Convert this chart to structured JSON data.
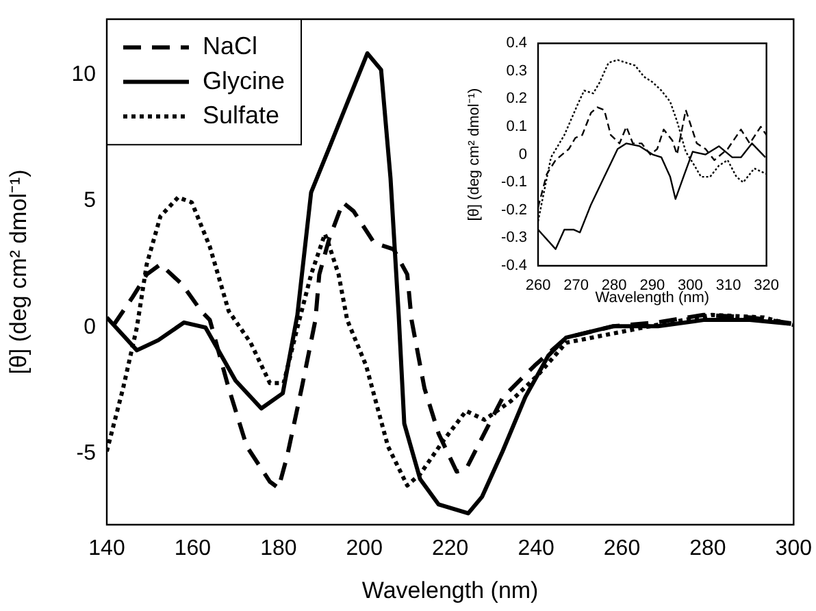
{
  "chart_data": [
    {
      "type": "line",
      "xlabel": "Wavelength (nm)",
      "ylabel": "[θ] (deg cm² dmol⁻¹)",
      "xlim": [
        140,
        300
      ],
      "xticks": [
        140,
        160,
        180,
        200,
        220,
        240,
        260,
        280,
        300
      ],
      "ylim": [
        -7.8,
        12.2
      ],
      "yticks": [
        -5,
        0,
        5,
        10
      ],
      "grid": false,
      "legend": "top left",
      "marker": "none",
      "series": [
        {
          "name": "NaCl",
          "color": "#000000",
          "line_style": "dashed",
          "x": [
            141.6,
            146,
            149.3,
            152.5,
            157.6,
            162,
            164,
            168.4,
            172.6,
            178,
            180,
            182,
            185.4,
            188.6,
            189.5,
            191.8,
            195,
            197.5,
            202.3,
            206.8,
            210,
            211,
            214,
            217.3,
            221.5,
            223.7,
            227,
            232.3,
            239.7,
            247,
            258,
            268,
            279,
            290,
            300
          ],
          "values": [
            0.1,
            1.2,
            2.1,
            2.5,
            1.7,
            0.65,
            0.3,
            -2.4,
            -4.7,
            -6.1,
            -6.35,
            -5.1,
            -2.4,
            0.3,
            2.1,
            3.5,
            4.95,
            4.6,
            3.35,
            3.1,
            2.1,
            0.3,
            -2.4,
            -4.2,
            -5.7,
            -5.6,
            -4.5,
            -2.75,
            -1.5,
            -0.4,
            0.05,
            0.2,
            0.5,
            0.4,
            0.15
          ]
        },
        {
          "name": "Glycine",
          "color": "#000000",
          "line_style": "solid",
          "x": [
            140,
            147,
            152,
            158,
            163,
            170,
            176,
            181,
            184.4,
            187.6,
            191.8,
            197,
            200.7,
            203.9,
            206.1,
            208,
            209.3,
            213,
            217.3,
            224.2,
            227.4,
            232.2,
            237.5,
            242.9,
            247,
            257.8,
            268.4,
            279,
            289.8,
            299.4
          ],
          "values": [
            0.4,
            -0.9,
            -0.5,
            0.2,
            0,
            -2.1,
            -3.2,
            -2.6,
            0.5,
            5.35,
            7.1,
            9.3,
            10.85,
            10.2,
            5.9,
            0.5,
            -3.8,
            -6,
            -7,
            -7.35,
            -6.7,
            -4.9,
            -2.75,
            -1.1,
            -0.4,
            0.05,
            0.05,
            0.3,
            0.3,
            0.15
          ]
        },
        {
          "name": "Sulfate",
          "color": "#000000",
          "line_style": "dotted",
          "x": [
            140,
            143.8,
            147,
            149.3,
            152.5,
            156.6,
            159.8,
            164,
            168.4,
            173.5,
            178,
            181.2,
            184.4,
            187.6,
            190.8,
            191.5,
            194,
            196,
            200.4,
            205.5,
            210,
            213,
            218.3,
            223.7,
            228,
            234.2,
            240.6,
            247,
            268,
            281,
            293,
            300
          ],
          "values": [
            -4.9,
            -2.4,
            0,
            2.5,
            4.4,
            5.15,
            4.95,
            3.2,
            0.65,
            -0.6,
            -2.2,
            -2.2,
            0,
            2.1,
            3.7,
            3.4,
            2.1,
            0.3,
            -1.5,
            -4.7,
            -6.25,
            -5.8,
            -4.5,
            -3.3,
            -3.65,
            -2.9,
            -1.85,
            -0.6,
            0.1,
            0.5,
            0.4,
            0.1
          ]
        }
      ]
    },
    {
      "type": "line",
      "xlabel": "Wavelength (nm)",
      "ylabel": "[θ] (deg cm² dmol⁻¹)",
      "xlim": [
        260,
        320
      ],
      "xticks": [
        260,
        270,
        280,
        290,
        300,
        310,
        320
      ],
      "ylim": [
        -0.4,
        0.4
      ],
      "yticks": [
        -0.4,
        -0.3,
        -0.2,
        -0.1,
        0,
        0.1,
        0.2,
        0.3,
        0.4
      ],
      "grid": false,
      "marker": "none",
      "series": [
        {
          "color": "#000000",
          "line_style": "dashed",
          "x": [
            260,
            262.3,
            264.6,
            268.1,
            269.8,
            271.6,
            273.9,
            275.6,
            277.4,
            279.1,
            281.4,
            283.2,
            284.9,
            287.2,
            289.5,
            291.3,
            293,
            295.3,
            296.5,
            298.8,
            301.7,
            304,
            306.3,
            309.8,
            313.3,
            315.6,
            318.5,
            320
          ],
          "values": [
            -0.19,
            -0.07,
            -0.02,
            0.02,
            0.06,
            0.07,
            0.15,
            0.17,
            0.16,
            0.07,
            0.04,
            0.1,
            0.04,
            0.04,
            0,
            0.02,
            0.09,
            0.05,
            0,
            0.16,
            0.04,
            0.02,
            -0.02,
            0.02,
            0.09,
            0.04,
            0.1,
            0.07
          ]
        },
        {
          "color": "#000000",
          "line_style": "solid",
          "x": [
            260,
            264.6,
            266.9,
            269.3,
            271,
            273.9,
            277.4,
            280.9,
            283.2,
            286.7,
            290.1,
            292.4,
            294.7,
            296.1,
            298.2,
            300.6,
            304,
            307.5,
            311,
            313.3,
            316.2,
            319.7
          ],
          "values": [
            -0.27,
            -0.34,
            -0.27,
            -0.27,
            -0.28,
            -0.18,
            -0.08,
            0.02,
            0.04,
            0.03,
            0,
            -0.01,
            -0.08,
            -0.16,
            -0.08,
            0.01,
            0,
            0.03,
            -0.01,
            -0.01,
            0.04,
            -0.01
          ]
        },
        {
          "color": "#000000",
          "line_style": "dotted",
          "x": [
            260,
            263.4,
            266.9,
            270.4,
            272.1,
            274.5,
            276.2,
            278.5,
            280.9,
            283.2,
            285.5,
            287.8,
            290.1,
            292.4,
            294.7,
            296.5,
            298.8,
            301.1,
            302.8,
            305.2,
            307.5,
            309.8,
            312.1,
            313.9,
            316.8,
            320
          ],
          "values": [
            -0.24,
            -0.01,
            0.07,
            0.18,
            0.23,
            0.22,
            0.26,
            0.33,
            0.34,
            0.33,
            0.32,
            0.28,
            0.26,
            0.23,
            0.19,
            0.12,
            0.01,
            -0.04,
            -0.08,
            -0.08,
            -0.04,
            -0.02,
            -0.08,
            -0.1,
            -0.05,
            -0.07
          ]
        }
      ]
    }
  ]
}
